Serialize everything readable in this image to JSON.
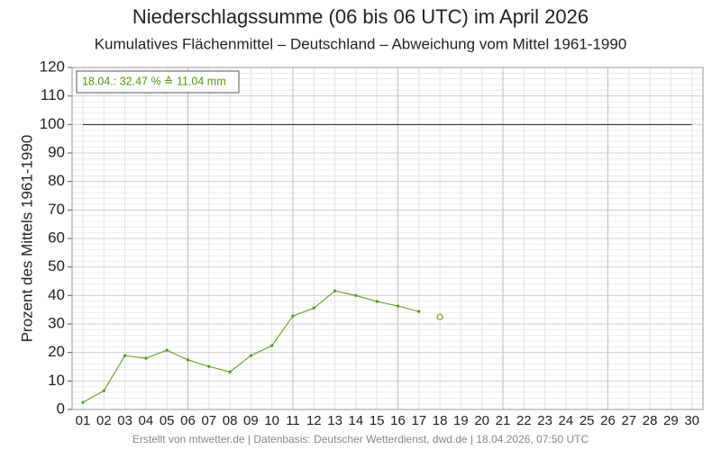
{
  "chart_data": {
    "type": "line",
    "title": "Niederschlagssumme (06 bis 06 UTC) im April 2026",
    "subtitle": "Kumulatives Flächenmittel – Deutschland – Abweichung vom Mittel 1961-1990",
    "y_label": "Prozent des Mittels 1961-1990",
    "annotation": "18.04.: 32.47 % ≙ 11.04 mm",
    "footer": "Erstellt von mtwetter.de | Datenbasis: Deutscher Wetterdienst, dwd.de | 18.04.2026, 07:50 UTC",
    "categories": [
      "01",
      "02",
      "03",
      "04",
      "05",
      "06",
      "07",
      "08",
      "09",
      "10",
      "11",
      "12",
      "13",
      "14",
      "15",
      "16",
      "17",
      "18",
      "19",
      "20",
      "21",
      "22",
      "23",
      "24",
      "25",
      "26",
      "27",
      "28",
      "29",
      "30"
    ],
    "series": [
      {
        "color": "#4c9a0a",
        "marker": "dot",
        "values": [
          2.5,
          6.6,
          18.9,
          18.0,
          20.8,
          17.4,
          15.1,
          13.2,
          18.9,
          22.4,
          32.8,
          35.6,
          41.6,
          40.0,
          37.9,
          36.3,
          34.4,
          null,
          null,
          null,
          null,
          null,
          null,
          null,
          null,
          null,
          null,
          null,
          null,
          null
        ]
      },
      {
        "color": "#4c9a0a",
        "marker": "open-circle",
        "values": [
          null,
          null,
          null,
          null,
          null,
          null,
          null,
          null,
          null,
          null,
          null,
          null,
          null,
          null,
          null,
          null,
          null,
          32.47,
          null,
          null,
          null,
          null,
          null,
          null,
          null,
          null,
          null,
          null,
          null,
          null
        ]
      }
    ],
    "reference_line": 100,
    "ylim": [
      0,
      120
    ],
    "yticks": [
      0,
      10,
      20,
      30,
      40,
      50,
      60,
      70,
      80,
      90,
      100,
      110,
      120
    ],
    "grid": true
  }
}
